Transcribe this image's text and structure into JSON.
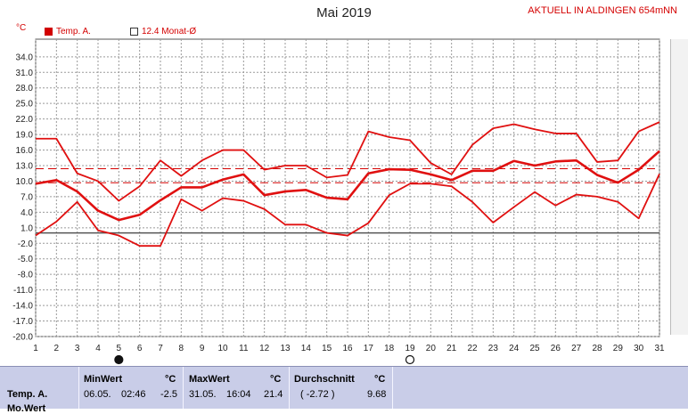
{
  "headline": "AKTUELL IN ALDINGEN 654mNN",
  "chart_data": {
    "type": "line",
    "title": "Mai 2019",
    "ylabel": "°C",
    "xlim": [
      1,
      31
    ],
    "ylim": [
      -20,
      35
    ],
    "grid": true,
    "y_ticks": [
      "34.0",
      "31.0",
      "28.0",
      "25.0",
      "22.0",
      "19.0",
      "16.0",
      "13.0",
      "10.0",
      "7.0",
      "4.0",
      "1.0",
      "-2.0",
      "-5.0",
      "-8.0",
      "-11.0",
      "-14.0",
      "-17.0",
      "-20.0"
    ],
    "y_tick_values": [
      34,
      31,
      28,
      25,
      22,
      19,
      16,
      13,
      10,
      7,
      4,
      1,
      -2,
      -5,
      -8,
      -11,
      -14,
      -17,
      -20
    ],
    "x": [
      1,
      2,
      3,
      4,
      5,
      6,
      7,
      8,
      9,
      10,
      11,
      12,
      13,
      14,
      15,
      16,
      17,
      18,
      19,
      20,
      21,
      22,
      23,
      24,
      25,
      26,
      27,
      28,
      29,
      30,
      31
    ],
    "legend": [
      {
        "label": "Temp. A.",
        "color": "#d40000"
      },
      {
        "label": "12.4 Monat-Ø",
        "color": "#333333"
      }
    ],
    "series": [
      {
        "name": "Temp. A.",
        "role": "max",
        "values": [
          18.2,
          18.2,
          11.5,
          10.0,
          6.2,
          9.0,
          14.0,
          11.0,
          14.0,
          16.0,
          16.0,
          12.2,
          13.0,
          13.0,
          10.7,
          11.2,
          19.6,
          18.5,
          17.9,
          13.5,
          11.3,
          17.0,
          20.2,
          21.0,
          20.0,
          19.2,
          19.2,
          13.7,
          14.0,
          19.6,
          21.4
        ]
      },
      {
        "name": "Temp. A.",
        "role": "mean",
        "values": [
          9.5,
          10.2,
          8.0,
          4.3,
          2.5,
          3.5,
          6.3,
          8.8,
          8.8,
          10.3,
          11.3,
          7.3,
          8.0,
          8.3,
          6.8,
          6.5,
          11.5,
          12.3,
          12.2,
          11.3,
          10.2,
          12.0,
          12.0,
          13.9,
          13.0,
          13.8,
          14.0,
          11.2,
          9.7,
          12.2,
          15.8
        ]
      },
      {
        "name": "Temp. A.",
        "role": "min",
        "values": [
          -0.5,
          2.2,
          6.0,
          0.5,
          -0.5,
          -2.5,
          -2.5,
          6.5,
          4.3,
          6.7,
          6.2,
          4.6,
          1.6,
          1.6,
          0.0,
          -0.5,
          1.9,
          7.3,
          9.5,
          9.5,
          9.0,
          6.0,
          2.0,
          5.0,
          7.9,
          5.3,
          7.4,
          7.0,
          6.0,
          2.8,
          11.4
        ]
      }
    ],
    "reference_lines": [
      {
        "label": "12.4 Monat-Ø",
        "value": 12.4,
        "style": "dashed"
      },
      {
        "value": 9.7,
        "style": "dashed"
      }
    ],
    "zero_line": 0,
    "moon_markers": [
      {
        "day": 5,
        "phase": "new"
      },
      {
        "day": 19,
        "phase": "full"
      }
    ]
  },
  "summary": {
    "row_label": "Temp. A.",
    "row_label_2": "Mo.Wert",
    "min_header": "MinWert",
    "max_header": "MaxWert",
    "avg_header": "Durchschnitt",
    "unit": "°C",
    "min_date": "06.05.",
    "min_time": "02:46",
    "min_value": "-2.5",
    "max_date": "31.05.",
    "max_time": "16:04",
    "max_value": "21.4",
    "avg_dev": "( -2.72 )",
    "avg_value": "9.68"
  }
}
